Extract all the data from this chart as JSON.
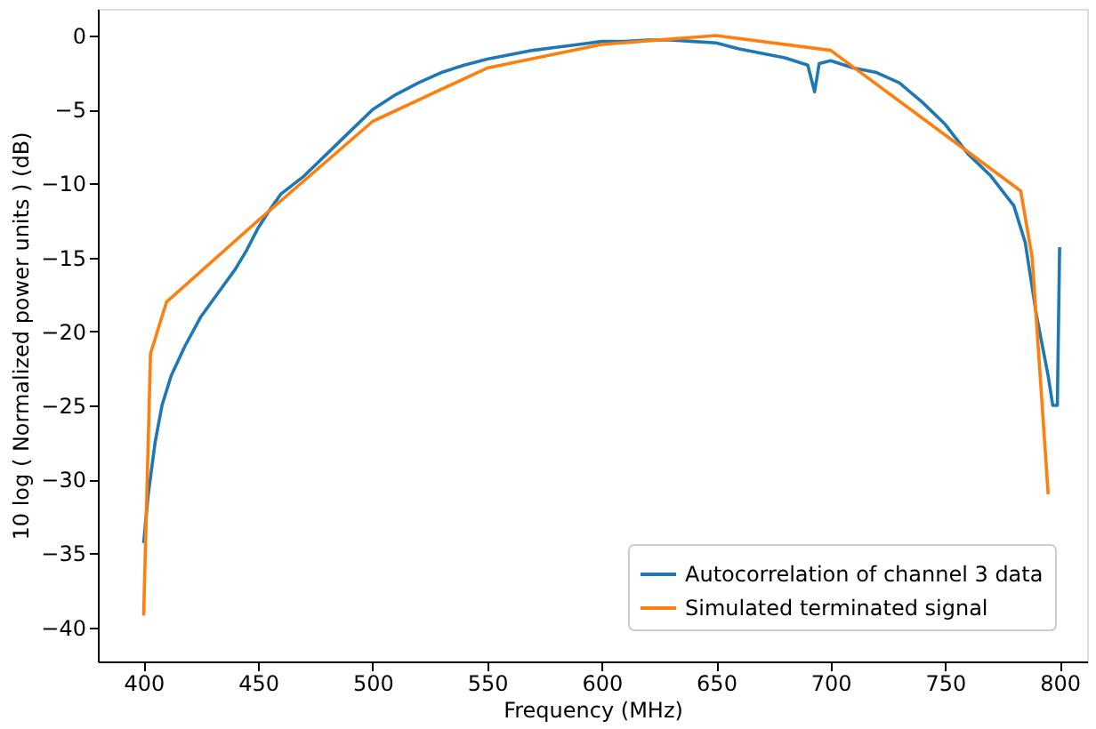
{
  "chart_data": {
    "type": "line",
    "xlabel": "Frequency (MHz)",
    "ylabel": "10 log ( Normalized power units ) (dB)",
    "xlim": [
      380,
      812
    ],
    "ylim": [
      -42.3,
      1.8
    ],
    "xticks": [
      400,
      450,
      500,
      550,
      600,
      650,
      700,
      750,
      800
    ],
    "yticks": [
      0,
      -5,
      -10,
      -15,
      -20,
      -25,
      -30,
      -35,
      -40
    ],
    "grid": false,
    "legend": "bottom right",
    "marker": "none",
    "line_style": "solid",
    "series": [
      {
        "name": "Autocorrelation of channel 3 data",
        "color": "#1f77b4",
        "x": [
          400,
          402,
          405,
          408,
          412,
          418,
          425,
          432,
          440,
          445,
          450,
          455,
          460,
          470,
          480,
          490,
          500,
          510,
          520,
          530,
          540,
          550,
          560,
          570,
          580,
          590,
          600,
          610,
          620,
          630,
          640,
          650,
          660,
          670,
          680,
          690,
          693,
          695,
          700,
          710,
          720,
          730,
          740,
          750,
          760,
          770,
          780,
          785,
          790,
          795,
          797,
          799,
          800
        ],
        "values": [
          -34.3,
          -31,
          -27.5,
          -25,
          -23,
          -21,
          -19,
          -17.5,
          -15.8,
          -14.5,
          -13,
          -11.8,
          -10.7,
          -9.5,
          -8,
          -6.5,
          -5,
          -4,
          -3.2,
          -2.5,
          -2,
          -1.6,
          -1.3,
          -1.0,
          -0.8,
          -0.6,
          -0.4,
          -0.4,
          -0.3,
          -0.3,
          -0.4,
          -0.5,
          -0.9,
          -1.2,
          -1.5,
          -2.0,
          -3.8,
          -1.9,
          -1.7,
          -2.2,
          -2.5,
          -3.2,
          -4.5,
          -6.0,
          -8.0,
          -9.5,
          -11.5,
          -14,
          -19,
          -23,
          -25,
          -25,
          -14.3
        ]
      },
      {
        "name": "Simulated terminated signal",
        "color": "#ff7f0e",
        "x": [
          400,
          403,
          410,
          450,
          500,
          550,
          600,
          650,
          700,
          783,
          788,
          795
        ],
        "values": [
          -39.2,
          -21.5,
          -18,
          -12.5,
          -5.8,
          -2.2,
          -0.6,
          0,
          -1,
          -10.5,
          -15,
          -31
        ]
      }
    ]
  }
}
